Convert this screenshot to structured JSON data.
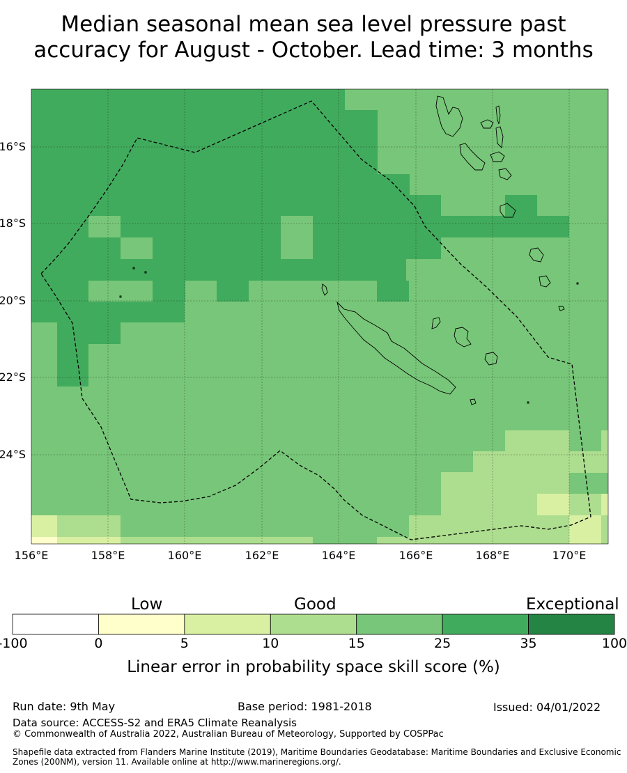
{
  "title_line1": "Median seasonal mean sea level pressure past",
  "title_line2": "accuracy for August - October. Lead time: 3 months",
  "map": {
    "lon_ticks": [
      "156°E",
      "158°E",
      "160°E",
      "162°E",
      "164°E",
      "166°E",
      "168°E",
      "170°E"
    ],
    "lat_ticks": [
      "16°S",
      "18°S",
      "20°S",
      "22°S",
      "24°S"
    ],
    "lon_range": [
      156,
      171
    ],
    "lat_range": [
      -26.3,
      -14.5
    ],
    "region_shown": "New Caledonia EEZ and surrounding Coral Sea (Vanuatu to the northeast)"
  },
  "colorbar": {
    "categories": [
      {
        "label": "Low"
      },
      {
        "label": "Good"
      },
      {
        "label": "Exceptional"
      }
    ],
    "ticks": [
      "-100",
      "0",
      "5",
      "10",
      "15",
      "25",
      "35",
      "100"
    ],
    "colors": [
      "#ffffff",
      "#ffffcc",
      "#d9f0a3",
      "#addd8e",
      "#78c679",
      "#41ab5d",
      "#238443"
    ],
    "label": "Linear error in probability space skill score (%)"
  },
  "footer": {
    "run_date": "Run date: 9th May",
    "base_period": "Base period: 1981-2018",
    "issued": "Issued: 04/01/2022",
    "data_source": "Data source: ACCESS-S2 and ERA5 Climate Reanalysis",
    "copyright": "© Commonwealth of Australia 2022, Australian Bureau of Meteorology, Supported by COSPPac",
    "shapefile_1": "Shapefile data extracted from Flanders Marine Institute (2019), Maritime Boundaries Geodatabase: Maritime Boundaries and Exclusive Economic",
    "shapefile_2": "Zones (200NM), version 11. Available online at http://www.marineregions.org/."
  }
}
